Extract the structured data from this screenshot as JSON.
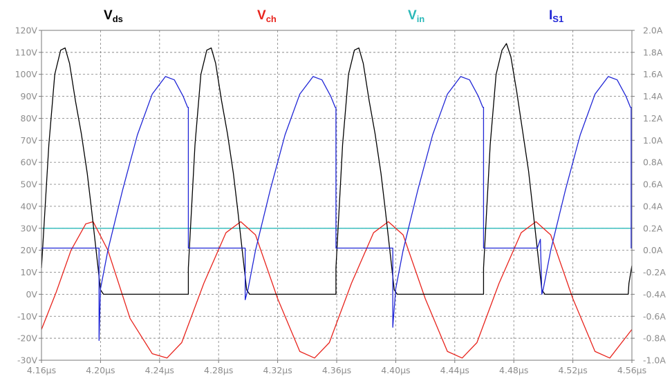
{
  "chart_data": {
    "type": "line",
    "x_unit": "µs",
    "x_ticks": [
      "4.16µs",
      "4.20µs",
      "4.24µs",
      "4.28µs",
      "4.32µs",
      "4.36µs",
      "4.40µs",
      "4.44µs",
      "4.48µs",
      "4.52µs",
      "4.56µs"
    ],
    "xlim": [
      4.16,
      4.56
    ],
    "left_axis": {
      "ylim": [
        -30,
        120
      ],
      "ticks": [
        "120V",
        "110V",
        "100V",
        "90V",
        "80V",
        "70V",
        "60V",
        "50V",
        "40V",
        "30V",
        "20V",
        "10V",
        "0V",
        "-10V",
        "-20V",
        "-30V"
      ]
    },
    "right_axis": {
      "ylim": [
        -1.0,
        2.0
      ],
      "ticks": [
        "2.0A",
        "1.8A",
        "1.6A",
        "1.4A",
        "1.2A",
        "1.0A",
        "0.8A",
        "0.6A",
        "0.4A",
        "0.2A",
        "0.0A",
        "-0.2A",
        "-0.4A",
        "-0.6A",
        "-0.8A",
        "-1.0A"
      ]
    },
    "grid": true,
    "legend_placement": "top",
    "series": [
      {
        "name": "Vds",
        "label_main": "V",
        "label_sub": "ds",
        "color": "#000000",
        "axis": "left",
        "points": [
          [
            4.16,
            12
          ],
          [
            4.165,
            68
          ],
          [
            4.169,
            100
          ],
          [
            4.173,
            111
          ],
          [
            4.176,
            112
          ],
          [
            4.179,
            105
          ],
          [
            4.183,
            88
          ],
          [
            4.187,
            73
          ],
          [
            4.191,
            55
          ],
          [
            4.194,
            38
          ],
          [
            4.197,
            20
          ],
          [
            4.2,
            2
          ],
          [
            4.202,
            0
          ],
          [
            4.2595,
            0
          ],
          [
            4.2595,
            12
          ],
          [
            4.264,
            68
          ],
          [
            4.268,
            100
          ],
          [
            4.272,
            111
          ],
          [
            4.275,
            112
          ],
          [
            4.278,
            105
          ],
          [
            4.282,
            88
          ],
          [
            4.286,
            73
          ],
          [
            4.29,
            55
          ],
          [
            4.293,
            38
          ],
          [
            4.296,
            20
          ],
          [
            4.299,
            2
          ],
          [
            4.301,
            0
          ],
          [
            4.3595,
            0
          ],
          [
            4.3595,
            12
          ],
          [
            4.364,
            68
          ],
          [
            4.368,
            100
          ],
          [
            4.372,
            111
          ],
          [
            4.375,
            112
          ],
          [
            4.378,
            105
          ],
          [
            4.382,
            88
          ],
          [
            4.386,
            73
          ],
          [
            4.39,
            55
          ],
          [
            4.393,
            38
          ],
          [
            4.396,
            20
          ],
          [
            4.399,
            2
          ],
          [
            4.401,
            0
          ],
          [
            4.4595,
            0
          ],
          [
            4.4595,
            12
          ],
          [
            4.464,
            68
          ],
          [
            4.468,
            100
          ],
          [
            4.472,
            111
          ],
          [
            4.475,
            114
          ],
          [
            4.478,
            108
          ],
          [
            4.482,
            92
          ],
          [
            4.486,
            74
          ],
          [
            4.49,
            56
          ],
          [
            4.493,
            38
          ],
          [
            4.496,
            20
          ],
          [
            4.499,
            2
          ],
          [
            4.501,
            0
          ],
          [
            4.5575,
            0
          ],
          [
            4.558,
            5
          ],
          [
            4.56,
            13
          ]
        ]
      },
      {
        "name": "Vch",
        "label_main": "V",
        "label_sub": "ch",
        "color": "#e8231c",
        "axis": "left",
        "points": [
          [
            4.16,
            -16
          ],
          [
            4.17,
            1
          ],
          [
            4.18,
            20
          ],
          [
            4.19,
            32
          ],
          [
            4.195,
            33
          ],
          [
            4.205,
            20
          ],
          [
            4.22,
            -11
          ],
          [
            4.235,
            -27
          ],
          [
            4.245,
            -29
          ],
          [
            4.255,
            -22
          ],
          [
            4.27,
            5
          ],
          [
            4.285,
            28
          ],
          [
            4.295,
            33
          ],
          [
            4.305,
            27
          ],
          [
            4.32,
            -2
          ],
          [
            4.335,
            -26
          ],
          [
            4.345,
            -29
          ],
          [
            4.355,
            -22
          ],
          [
            4.37,
            5
          ],
          [
            4.385,
            28
          ],
          [
            4.395,
            33
          ],
          [
            4.405,
            27
          ],
          [
            4.42,
            -2
          ],
          [
            4.435,
            -26
          ],
          [
            4.445,
            -29
          ],
          [
            4.455,
            -22
          ],
          [
            4.47,
            5
          ],
          [
            4.485,
            28
          ],
          [
            4.495,
            33
          ],
          [
            4.505,
            27
          ],
          [
            4.52,
            -2
          ],
          [
            4.535,
            -26
          ],
          [
            4.545,
            -29
          ],
          [
            4.56,
            -16
          ]
        ]
      },
      {
        "name": "Vin",
        "label_main": "V",
        "label_sub": "in",
        "color": "#2ab8b8",
        "axis": "left",
        "points": [
          [
            4.16,
            30
          ],
          [
            4.56,
            30
          ]
        ]
      },
      {
        "name": "IS1",
        "label_main": "I",
        "label_sub": "S1",
        "color": "#1f25d6",
        "axis": "right",
        "points": [
          [
            4.16,
            0.0
          ],
          [
            4.16,
            0.02
          ],
          [
            4.199,
            0.02
          ],
          [
            4.199,
            -0.82
          ],
          [
            4.2,
            -0.35
          ],
          [
            4.205,
            0.0
          ],
          [
            4.215,
            0.55
          ],
          [
            4.225,
            1.05
          ],
          [
            4.235,
            1.42
          ],
          [
            4.244,
            1.58
          ],
          [
            4.25,
            1.55
          ],
          [
            4.256,
            1.4
          ],
          [
            4.259,
            1.3
          ],
          [
            4.2595,
            1.3
          ],
          [
            4.2595,
            0.02
          ],
          [
            4.298,
            0.02
          ],
          [
            4.298,
            -0.45
          ],
          [
            4.3,
            -0.35
          ],
          [
            4.305,
            0.0
          ],
          [
            4.315,
            0.55
          ],
          [
            4.325,
            1.05
          ],
          [
            4.335,
            1.42
          ],
          [
            4.344,
            1.58
          ],
          [
            4.35,
            1.55
          ],
          [
            4.356,
            1.4
          ],
          [
            4.359,
            1.3
          ],
          [
            4.3595,
            1.3
          ],
          [
            4.3595,
            0.02
          ],
          [
            4.398,
            0.02
          ],
          [
            4.398,
            -0.7
          ],
          [
            4.4,
            -0.35
          ],
          [
            4.405,
            0.0
          ],
          [
            4.415,
            0.55
          ],
          [
            4.425,
            1.05
          ],
          [
            4.435,
            1.42
          ],
          [
            4.444,
            1.58
          ],
          [
            4.45,
            1.55
          ],
          [
            4.456,
            1.4
          ],
          [
            4.459,
            1.3
          ],
          [
            4.4595,
            1.3
          ],
          [
            4.4595,
            0.02
          ],
          [
            4.496,
            0.02
          ],
          [
            4.498,
            0.1
          ],
          [
            4.499,
            -0.4
          ],
          [
            4.5,
            -0.35
          ],
          [
            4.505,
            0.0
          ],
          [
            4.515,
            0.55
          ],
          [
            4.525,
            1.05
          ],
          [
            4.535,
            1.42
          ],
          [
            4.544,
            1.58
          ],
          [
            4.55,
            1.55
          ],
          [
            4.556,
            1.4
          ],
          [
            4.559,
            1.3
          ],
          [
            4.5595,
            1.3
          ],
          [
            4.5595,
            0.02
          ],
          [
            4.56,
            0.02
          ]
        ]
      }
    ]
  }
}
